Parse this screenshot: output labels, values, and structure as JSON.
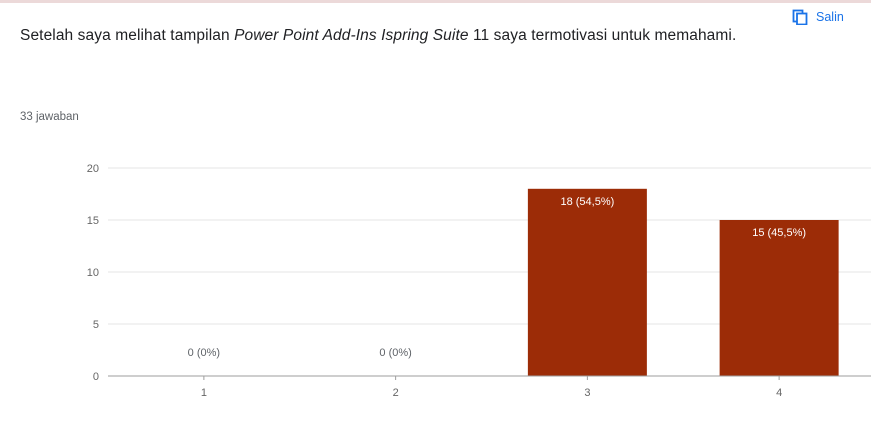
{
  "header": {
    "copy_label": "Salin",
    "copy_icon": "copy-icon"
  },
  "question": {
    "part1": "Setelah saya melihat tampilan ",
    "italic": "Power Point Add-Ins Ispring Suite",
    "part2": " 11 saya termotivasi untuk memahami."
  },
  "responses_label": "33 jawaban",
  "colors": {
    "bar": "#9c2c07",
    "grid": "#e6e6e6",
    "axis": "#9e9e9e",
    "tick_text": "#666666",
    "link": "#1a73e8"
  },
  "chart_data": {
    "type": "bar",
    "categories": [
      "1",
      "2",
      "3",
      "4"
    ],
    "values": [
      0,
      0,
      18,
      15
    ],
    "data_labels": [
      "0 (0%)",
      "0 (0%)",
      "18 (54,5%)",
      "15 (45,5%)"
    ],
    "yticks": [
      "0",
      "5",
      "10",
      "15",
      "20"
    ],
    "ylim": [
      0,
      20
    ],
    "grid": true,
    "legend": "none",
    "xlabel": "",
    "ylabel": "",
    "title": ""
  }
}
